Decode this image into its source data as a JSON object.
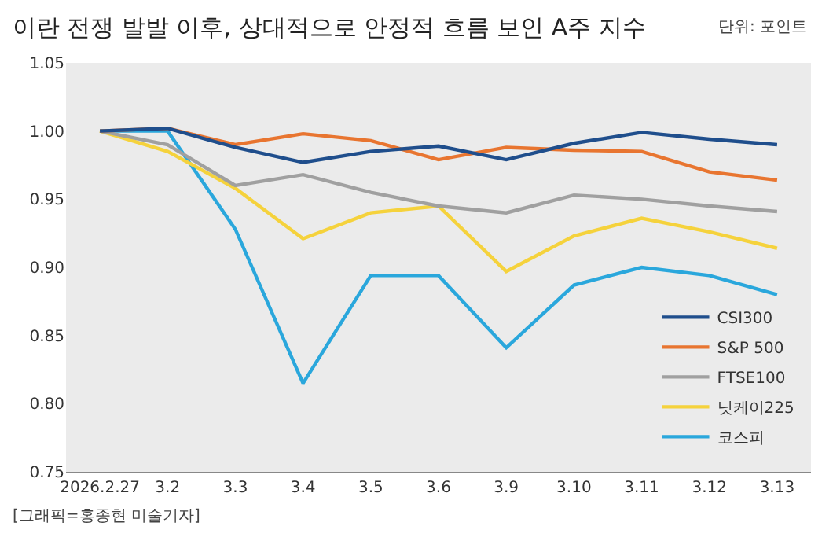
{
  "chart_data": {
    "type": "line",
    "title": "이란 전쟁 발발 이후, 상대적으로 안정적 흐름 보인 A주 지수",
    "categories": [
      "2026.2.27",
      "3.2",
      "3.3",
      "3.4",
      "3.5",
      "3.6",
      "3.9",
      "3.10",
      "3.11",
      "3.12",
      "3.13"
    ],
    "series": [
      {
        "name": "CSI300",
        "color": "#1f4e8c",
        "values": [
          1.0,
          1.002,
          0.988,
          0.977,
          0.985,
          0.989,
          0.979,
          0.991,
          0.999,
          0.994,
          0.99
        ]
      },
      {
        "name": "S&P 500",
        "color": "#e87530",
        "values": [
          1.0,
          1.002,
          0.99,
          0.998,
          0.993,
          0.979,
          0.988,
          0.986,
          0.985,
          0.97,
          0.964
        ]
      },
      {
        "name": "FTSE100",
        "color": "#a0a0a0",
        "values": [
          1.0,
          0.99,
          0.96,
          0.968,
          0.955,
          0.945,
          0.94,
          0.953,
          0.95,
          0.945,
          0.941
        ]
      },
      {
        "name": "닛케이225",
        "color": "#f5d23c",
        "values": [
          1.0,
          0.985,
          0.958,
          0.921,
          0.94,
          0.945,
          0.897,
          0.923,
          0.936,
          0.926,
          0.914
        ]
      },
      {
        "name": "코스피",
        "color": "#2aa7dc",
        "values": [
          1.0,
          1.0,
          0.928,
          0.815,
          0.894,
          0.894,
          0.841,
          0.887,
          0.9,
          0.894,
          0.88
        ]
      }
    ],
    "ylim": [
      0.75,
      1.05
    ],
    "yticks": [
      {
        "value": 0.75,
        "label": "0.75"
      },
      {
        "value": 0.8,
        "label": "0.80"
      },
      {
        "value": 0.85,
        "label": "0.85"
      },
      {
        "value": 0.9,
        "label": "0.90"
      },
      {
        "value": 0.95,
        "label": "0.95"
      },
      {
        "value": 1.0,
        "label": "1.00"
      },
      {
        "value": 1.05,
        "label": "1.05"
      }
    ],
    "annotations": [
      "단위: 포인트",
      "[그래픽=홍종현 미술기자]"
    ],
    "legend": "bottom right",
    "marker": "none",
    "line_style": "solid"
  }
}
